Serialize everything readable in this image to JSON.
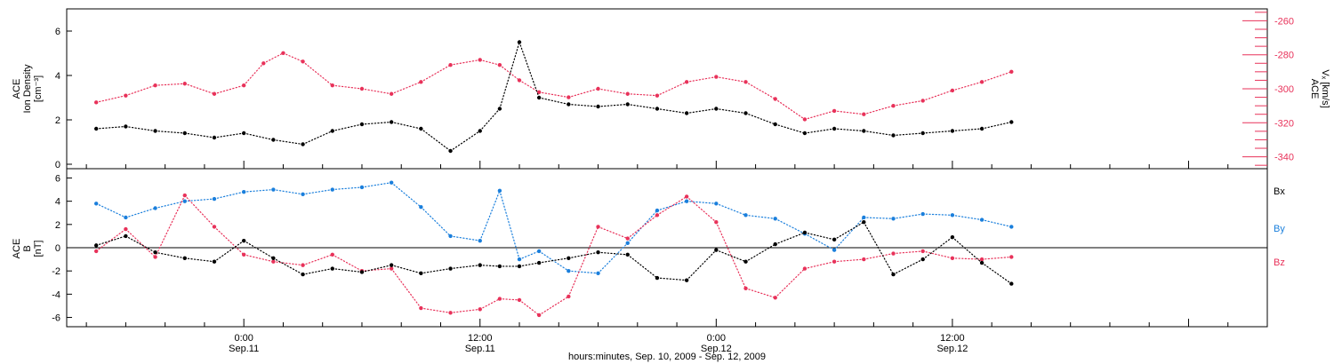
{
  "chart_data": [
    {
      "type": "scatter",
      "panel": "top",
      "ylabel_lines": [
        "ACE",
        "Ion Density",
        "[cm⁻³]"
      ],
      "ylim": [
        -0.2,
        7
      ],
      "yticks": [
        0,
        2,
        4,
        6
      ],
      "y2label_lines": [
        "ACE",
        "Vₓ [km/s]"
      ],
      "y2lim": [
        -347,
        -253
      ],
      "y2ticks": [
        -260,
        -280,
        -300,
        -320,
        -340
      ],
      "colors": {
        "density": "#000000",
        "velocity": "#e8325a"
      },
      "series": [
        {
          "key": "density",
          "axis": "left",
          "x": [
            -7.5,
            -6,
            -4.5,
            -3,
            -1.5,
            0,
            1.5,
            3,
            4.5,
            6,
            7.5,
            9,
            10.5,
            12,
            13,
            14,
            15,
            16.5,
            18,
            19.5,
            21,
            22.5,
            24,
            25.5,
            27,
            28.5,
            30,
            31.5,
            33,
            34.5,
            36,
            37.5,
            39
          ],
          "values": [
            1.6,
            1.7,
            1.5,
            1.4,
            1.2,
            1.4,
            1.1,
            0.9,
            1.5,
            1.8,
            1.9,
            1.6,
            0.6,
            1.5,
            2.5,
            5.5,
            3.0,
            2.7,
            2.6,
            2.7,
            2.5,
            2.3,
            2.5,
            2.3,
            1.8,
            1.4,
            1.6,
            1.5,
            1.3,
            1.4,
            1.5,
            1.6,
            1.9
          ]
        },
        {
          "key": "velocity",
          "axis": "right",
          "x": [
            -7.5,
            -6,
            -4.5,
            -3,
            -1.5,
            0,
            1,
            2,
            3,
            4.5,
            6,
            7.5,
            9,
            10.5,
            12,
            13,
            14,
            15,
            16.5,
            18,
            19.5,
            21,
            22.5,
            24,
            25.5,
            27,
            28.5,
            30,
            31.5,
            33,
            34.5,
            36,
            37.5,
            39
          ],
          "values": [
            -308,
            -304,
            -298,
            -297,
            -303,
            -298,
            -285,
            -279,
            -284,
            -298,
            -300,
            -303,
            -296,
            -286,
            -283,
            -286,
            -295,
            -302,
            -305,
            -300,
            -303,
            -304,
            -296,
            -293,
            -296,
            -306,
            -318,
            -313,
            -315,
            -310,
            -307,
            -301,
            -296,
            -290
          ]
        }
      ]
    },
    {
      "type": "scatter",
      "panel": "bottom",
      "ylabel_lines": [
        "ACE",
        "B",
        "[nT]"
      ],
      "ylim": [
        -6.8,
        6.8
      ],
      "yticks": [
        6,
        4,
        2,
        0,
        -2,
        -4,
        -6
      ],
      "zero_line": true,
      "legend_position": "right",
      "colors": {
        "bx": "#000000",
        "by": "#1a7fdc",
        "bz": "#e8325a"
      },
      "series": [
        {
          "key": "bx",
          "name": "Bx",
          "x": [
            -7.5,
            -6,
            -4.5,
            -3,
            -1.5,
            0,
            1.5,
            3,
            4.5,
            6,
            7.5,
            9,
            10.5,
            12,
            13,
            14,
            15,
            16.5,
            18,
            19.5,
            21,
            22.5,
            24,
            25.5,
            27,
            28.5,
            30,
            31.5,
            33,
            34.5,
            36,
            37.5,
            39
          ],
          "values": [
            0.2,
            1.0,
            -0.4,
            -0.9,
            -1.2,
            0.6,
            -0.9,
            -2.3,
            -1.8,
            -2.1,
            -1.5,
            -2.2,
            -1.8,
            -1.5,
            -1.6,
            -1.6,
            -1.3,
            -0.9,
            -0.4,
            -0.6,
            -2.6,
            -2.8,
            -0.2,
            -1.2,
            0.3,
            1.3,
            0.7,
            2.2,
            -2.3,
            -1.0,
            0.9,
            -1.3,
            -3.1
          ]
        },
        {
          "key": "by",
          "name": "By",
          "x": [
            -7.5,
            -6,
            -4.5,
            -3,
            -1.5,
            0,
            1.5,
            3,
            4.5,
            6,
            7.5,
            9,
            10.5,
            12,
            13,
            14,
            15,
            16.5,
            18,
            19.5,
            21,
            22.5,
            24,
            25.5,
            27,
            28.5,
            30,
            31.5,
            33,
            34.5,
            36,
            37.5,
            39
          ],
          "values": [
            3.8,
            2.6,
            3.4,
            4.0,
            4.2,
            4.8,
            5.0,
            4.6,
            5.0,
            5.2,
            5.6,
            3.5,
            1.0,
            0.6,
            4.9,
            -1.0,
            -0.3,
            -2.0,
            -2.2,
            0.4,
            3.2,
            4.0,
            3.8,
            2.8,
            2.5,
            1.2,
            -0.2,
            2.6,
            2.5,
            2.9,
            2.8,
            2.4,
            1.8
          ]
        },
        {
          "key": "bz",
          "name": "Bz",
          "x": [
            -7.5,
            -6,
            -4.5,
            -3,
            -1.5,
            0,
            1.5,
            3,
            4.5,
            6,
            7.5,
            9,
            10.5,
            12,
            13,
            14,
            15,
            16.5,
            18,
            19.5,
            21,
            22.5,
            24,
            25.5,
            27,
            28.5,
            30,
            31.5,
            33,
            34.5,
            36,
            37.5,
            39
          ],
          "values": [
            -0.3,
            1.6,
            -0.8,
            4.5,
            1.8,
            -0.6,
            -1.2,
            -1.5,
            -0.6,
            -2.0,
            -1.8,
            -5.2,
            -5.6,
            -5.3,
            -4.4,
            -4.5,
            -5.8,
            -4.2,
            1.8,
            0.8,
            2.8,
            4.4,
            2.2,
            -3.5,
            -4.3,
            -1.8,
            -1.2,
            -1.0,
            -0.5,
            -0.3,
            -0.9,
            -1.0,
            -0.8
          ]
        }
      ]
    }
  ],
  "xaxis": {
    "range_hours": [
      -9,
      52
    ],
    "ticks": [
      {
        "x": 0,
        "time": "0:00",
        "date": "Sep.11"
      },
      {
        "x": 12,
        "time": "12:00",
        "date": "Sep.11"
      },
      {
        "x": 24,
        "time": "0:00",
        "date": "Sep.12"
      },
      {
        "x": 36,
        "time": "12:00",
        "date": "Sep.12"
      }
    ],
    "label": "hours:minutes, Sep. 10, 2009 - Sep. 12, 2009"
  }
}
